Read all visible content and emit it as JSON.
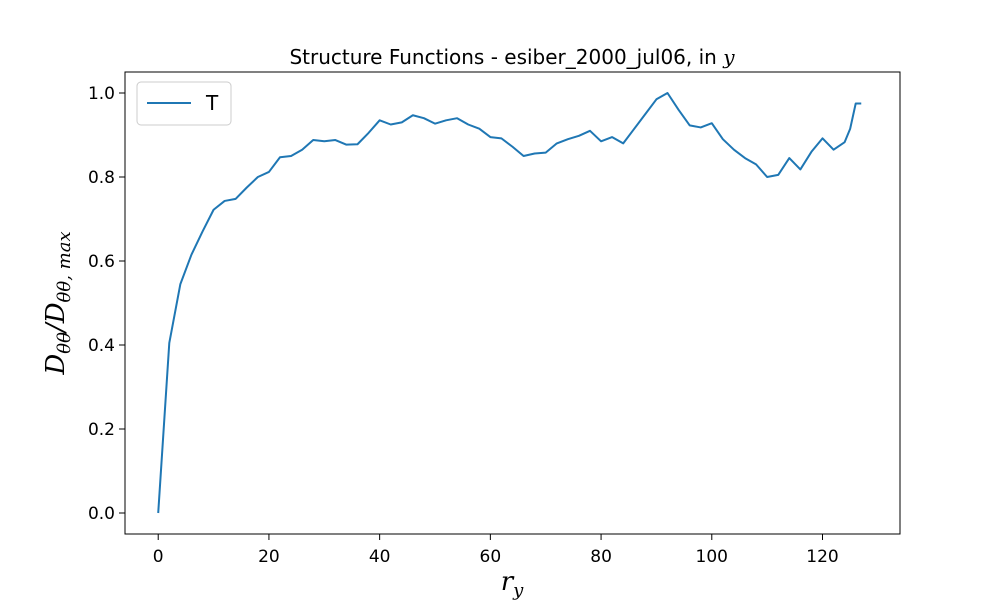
{
  "chart_data": {
    "type": "line",
    "title_main": "Structure Functions - esiber_2000_jul06, in ",
    "title_var": "y",
    "xlabel_main": "r",
    "xlabel_sub": "y",
    "ylabel_main": "D",
    "ylabel_sub1": "θθ",
    "ylabel_mid": "/D",
    "ylabel_sub2": "θθ, max",
    "xlim": [
      -6,
      134
    ],
    "ylim": [
      -0.05,
      1.05
    ],
    "x_ticks": [
      0,
      20,
      40,
      60,
      80,
      100,
      120
    ],
    "x_tick_labels": [
      "0",
      "20",
      "40",
      "60",
      "80",
      "100",
      "120"
    ],
    "y_ticks": [
      0.0,
      0.2,
      0.4,
      0.6,
      0.8,
      1.0
    ],
    "y_tick_labels": [
      "0.0",
      "0.2",
      "0.4",
      "0.6",
      "0.8",
      "1.0"
    ],
    "grid": false,
    "legend_position": "top-left",
    "series": [
      {
        "name": "T",
        "color": "#1f77b4",
        "x": [
          0,
          2,
          4,
          6,
          8,
          10,
          12,
          14,
          16,
          18,
          20,
          22,
          24,
          26,
          28,
          30,
          32,
          34,
          36,
          38,
          40,
          42,
          44,
          46,
          48,
          50,
          52,
          54,
          56,
          58,
          60,
          62,
          64,
          66,
          68,
          70,
          72,
          74,
          76,
          78,
          80,
          82,
          84,
          86,
          88,
          90,
          92,
          94,
          96,
          98,
          100,
          102,
          104,
          106,
          108,
          110,
          112,
          114,
          116,
          118,
          120,
          122,
          124,
          125,
          126,
          127
        ],
        "y": [
          0.0,
          0.405,
          0.545,
          0.615,
          0.67,
          0.722,
          0.743,
          0.748,
          0.775,
          0.8,
          0.812,
          0.847,
          0.85,
          0.865,
          0.888,
          0.885,
          0.888,
          0.877,
          0.878,
          0.905,
          0.935,
          0.925,
          0.93,
          0.947,
          0.94,
          0.927,
          0.935,
          0.94,
          0.925,
          0.915,
          0.895,
          0.892,
          0.872,
          0.85,
          0.856,
          0.858,
          0.88,
          0.89,
          0.898,
          0.91,
          0.885,
          0.895,
          0.88,
          0.915,
          0.95,
          0.985,
          1.0,
          0.96,
          0.923,
          0.918,
          0.928,
          0.89,
          0.865,
          0.845,
          0.83,
          0.8,
          0.805,
          0.845,
          0.818,
          0.86,
          0.892,
          0.865,
          0.883,
          0.915,
          0.975,
          0.975
        ]
      }
    ]
  }
}
